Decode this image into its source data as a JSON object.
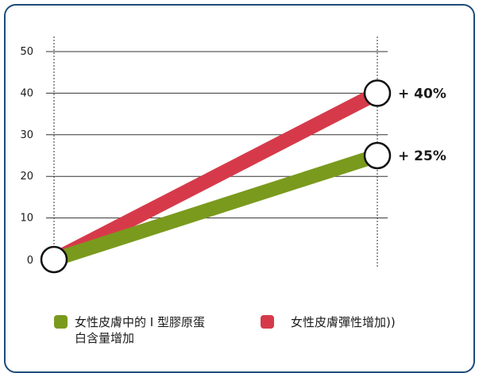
{
  "chart_data": {
    "type": "line",
    "x": [
      0,
      1
    ],
    "ylim": [
      0,
      50
    ],
    "yticks": [
      0,
      10,
      20,
      30,
      40,
      50
    ],
    "grid": true,
    "series": [
      {
        "name": "女性皮膚彈性增加))",
        "values": [
          0,
          40
        ],
        "color": "#d63a4a",
        "end_label": "+ 40%"
      },
      {
        "name": "女性皮膚中的 I 型膠原蛋白含量增加",
        "values": [
          0,
          25
        ],
        "color": "#7a9a1d",
        "end_label": "+ 25%"
      }
    ],
    "legend": [
      {
        "lines": [
          "女性皮膚中的 I 型膠原蛋",
          "白含量增加"
        ],
        "color": "#7a9a1d"
      },
      {
        "lines": [
          "女性皮膚彈性增加))"
        ],
        "color": "#d63a4a"
      }
    ],
    "frame_color": "#1d4b7a"
  }
}
